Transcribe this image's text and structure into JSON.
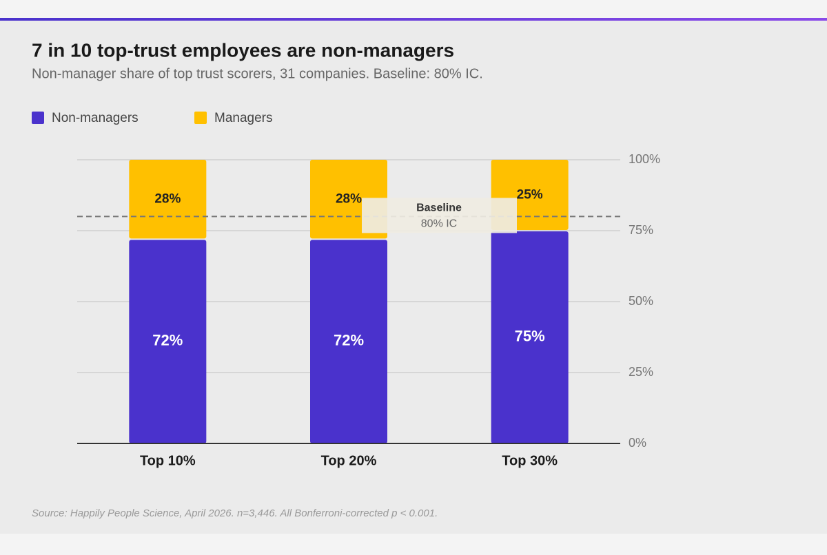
{
  "chart_data": {
    "type": "stacked-bar",
    "title": "7 in 10 top-trust employees are non-managers",
    "subtitle": "Non-manager share of top trust scorers, 31 companies. Baseline: 80% IC.",
    "categories": [
      "Top 10%",
      "Top 20%",
      "Top 30%"
    ],
    "series": [
      {
        "name": "Non-managers",
        "color": "#4a32cc",
        "values": [
          72,
          72,
          75
        ],
        "value_labels": [
          "72%",
          "72%",
          "75%"
        ]
      },
      {
        "name": "Managers",
        "color": "#ffc000",
        "values": [
          28,
          28,
          25
        ],
        "value_labels": [
          "28%",
          "28%",
          "25%"
        ]
      }
    ],
    "ylim": [
      0,
      100
    ],
    "yticks": [
      {
        "value": 0,
        "label": "0%"
      },
      {
        "value": 25,
        "label": "25%"
      },
      {
        "value": 50,
        "label": "50%"
      },
      {
        "value": 75,
        "label": "75%"
      },
      {
        "value": 100,
        "label": "100%"
      }
    ],
    "grid": true,
    "baseline": {
      "value": 80,
      "label": "Baseline",
      "sublabel": "80% IC"
    },
    "source": "Source: Happily People Science, April 2026. n=3,446. All Bonferroni-corrected p < 0.001."
  }
}
